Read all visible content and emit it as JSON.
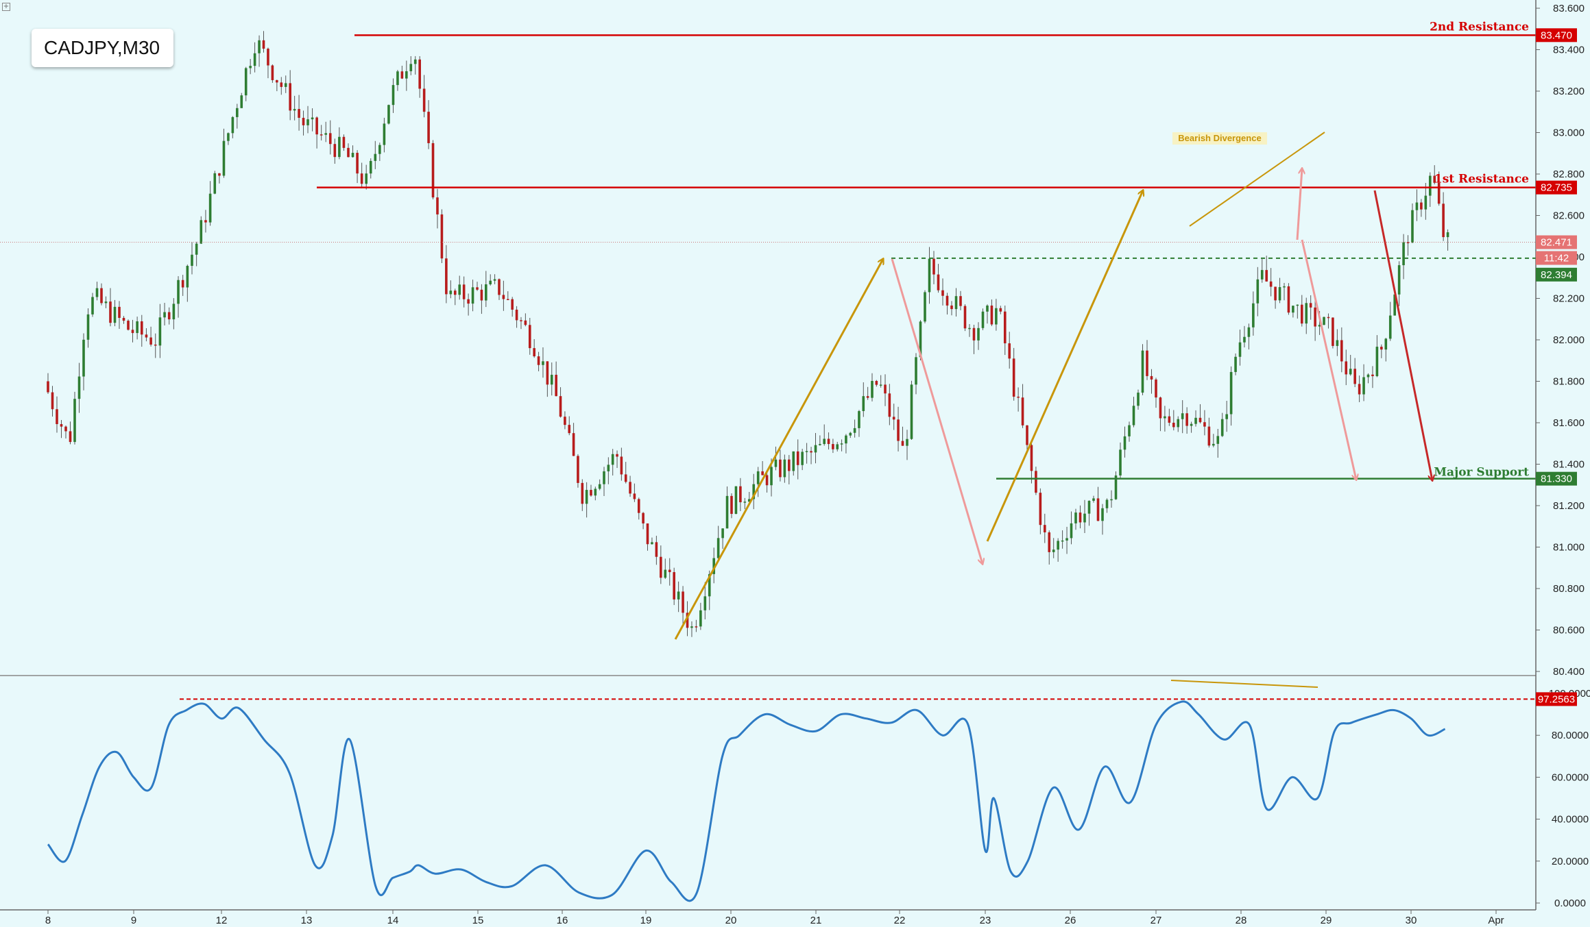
{
  "chart_title": "CADJPY,M30",
  "colors": {
    "background": "#e8f9fb",
    "bull_candle": "#2e7d32",
    "bear_candle": "#b71c1c",
    "resistance": "#d50000",
    "support": "#2e7d32",
    "arrow_gold": "#c8960a",
    "arrow_pink": "#ef9a9a",
    "arrow_red": "#c62828",
    "oscillator": "#2e7bc4"
  },
  "chart_data": [
    {
      "type": "line",
      "title": "CADJPY,M30",
      "ylim": [
        80.4,
        83.6
      ],
      "y_ticks": [
        "83.600",
        "83.400",
        "83.200",
        "83.000",
        "82.800",
        "82.600",
        "82.400",
        "82.200",
        "82.000",
        "81.800",
        "81.600",
        "81.400",
        "81.200",
        "81.000",
        "80.800",
        "80.600",
        "80.400"
      ],
      "x_ticks": [
        "8",
        "9",
        "12",
        "13",
        "14",
        "15",
        "16",
        "19",
        "20",
        "21",
        "22",
        "23",
        "26",
        "27",
        "28",
        "29",
        "30",
        "Apr"
      ],
      "price_path": {
        "x": [
          0,
          0.3,
          0.5,
          0.6,
          1.0,
          1.3,
          1.8,
          2.2,
          2.45,
          3.0,
          3.5,
          3.75,
          4.0,
          4.3,
          4.7,
          5.3,
          5.7,
          6.0,
          6.3,
          6.7,
          7.0,
          7.3,
          7.6,
          8.0,
          8.5,
          9.0,
          9.4,
          9.8,
          10.1,
          10.4,
          10.9,
          11.2,
          11.5,
          11.8,
          12.1,
          12.5,
          12.9,
          13.1,
          13.4,
          13.8,
          14.0,
          14.3,
          14.7,
          15.1,
          15.4,
          15.7,
          16.0,
          16.3,
          16.45
        ],
        "y": [
          81.8,
          81.5,
          82.15,
          82.2,
          82.05,
          82.0,
          82.5,
          83.1,
          83.45,
          83.05,
          82.9,
          82.75,
          83.15,
          83.42,
          82.2,
          82.25,
          82.0,
          81.7,
          81.25,
          81.45,
          81.1,
          80.85,
          80.6,
          81.2,
          81.35,
          81.45,
          81.55,
          81.8,
          81.45,
          82.35,
          82.05,
          82.15,
          81.55,
          80.95,
          81.15,
          81.2,
          81.9,
          81.6,
          81.65,
          81.5,
          81.95,
          82.3,
          82.15,
          82.05,
          81.75,
          81.95,
          82.5,
          82.8,
          82.47
        ]
      },
      "levels": [
        {
          "name": "2nd Resistance",
          "value": 83.47,
          "label": "83.470"
        },
        {
          "name": "1st Resistance",
          "value": 82.735,
          "label": "82.735"
        },
        {
          "name": "Major Support",
          "value": 81.33,
          "label": "81.330"
        }
      ],
      "current_price": "82.471",
      "countdown": "11:42",
      "marked_level": "82.394",
      "annotations": [
        "Bearish Divergence"
      ]
    },
    {
      "type": "line",
      "ylim": [
        0,
        100
      ],
      "y_ticks": [
        "100.0000",
        "80.0000",
        "60.0000",
        "40.0000",
        "20.0000",
        "0.0000"
      ],
      "marked_level": "97.2563",
      "oscillator_path": {
        "x": [
          0,
          0.2,
          0.4,
          0.6,
          0.8,
          1.0,
          1.2,
          1.4,
          1.6,
          1.8,
          2.0,
          2.2,
          2.5,
          2.8,
          3.1,
          3.3,
          3.5,
          3.8,
          4.0,
          4.2,
          4.3,
          4.5,
          4.8,
          5.1,
          5.4,
          5.8,
          6.2,
          6.6,
          7.0,
          7.3,
          7.6,
          7.9,
          8.1,
          8.4,
          8.7,
          9.0,
          9.3,
          9.6,
          9.9,
          10.2,
          10.5,
          10.8,
          11.0,
          11.1,
          11.3,
          11.5,
          11.8,
          12.1,
          12.4,
          12.7,
          13.0,
          13.3,
          13.5,
          13.8,
          14.1,
          14.3,
          14.6,
          14.9,
          15.1,
          15.3,
          15.6,
          15.8,
          16.0,
          16.2,
          16.4
        ],
        "y": [
          28,
          20,
          42,
          65,
          72,
          60,
          55,
          85,
          92,
          95,
          88,
          93,
          78,
          62,
          18,
          32,
          78,
          8,
          12,
          15,
          18,
          14,
          16,
          10,
          8,
          18,
          5,
          4,
          25,
          10,
          5,
          70,
          80,
          90,
          85,
          82,
          90,
          88,
          86,
          92,
          80,
          85,
          25,
          50,
          15,
          20,
          55,
          35,
          65,
          48,
          85,
          96,
          90,
          78,
          85,
          45,
          60,
          50,
          82,
          86,
          90,
          92,
          88,
          80,
          83
        ]
      }
    }
  ]
}
